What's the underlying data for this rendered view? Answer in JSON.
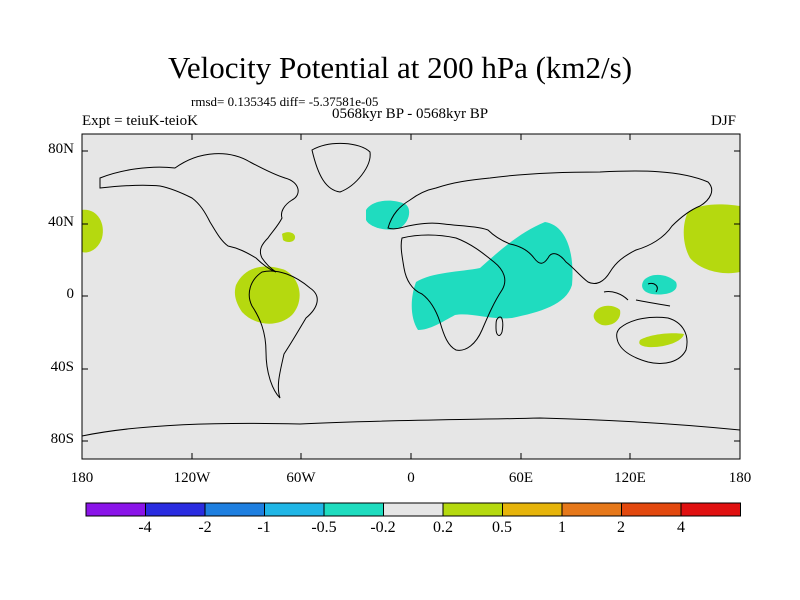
{
  "title": "Velocity Potential at 200 hPa (km2/s)",
  "stats": "rmsd= 0.135345  diff= -5.37581e-05",
  "experiment": "Expt = teiuK-teioK",
  "period": "0568kyr BP - 0568kyr BP",
  "season": "DJF",
  "lat_labels": [
    "80N",
    "40N",
    "0",
    "40S",
    "80S"
  ],
  "lon_labels": [
    "180",
    "120W",
    "60W",
    "0",
    "60E",
    "120E",
    "180"
  ],
  "colorbar": {
    "labels": [
      "-4",
      "-2",
      "-1",
      "-0.5",
      "-0.2",
      "0.2",
      "0.5",
      "1",
      "2",
      "4"
    ],
    "colors": [
      "#8a14e8",
      "#2a2ce0",
      "#1e7fe0",
      "#20b6e6",
      "#1fdcbf",
      "#e6e6e6",
      "#b5d90f",
      "#e6b40a",
      "#e6781a",
      "#e2480e",
      "#e01010"
    ]
  },
  "colors": {
    "background": "#e6e6e6",
    "negative": "#1fdcbf",
    "positive": "#b5d90f"
  }
}
